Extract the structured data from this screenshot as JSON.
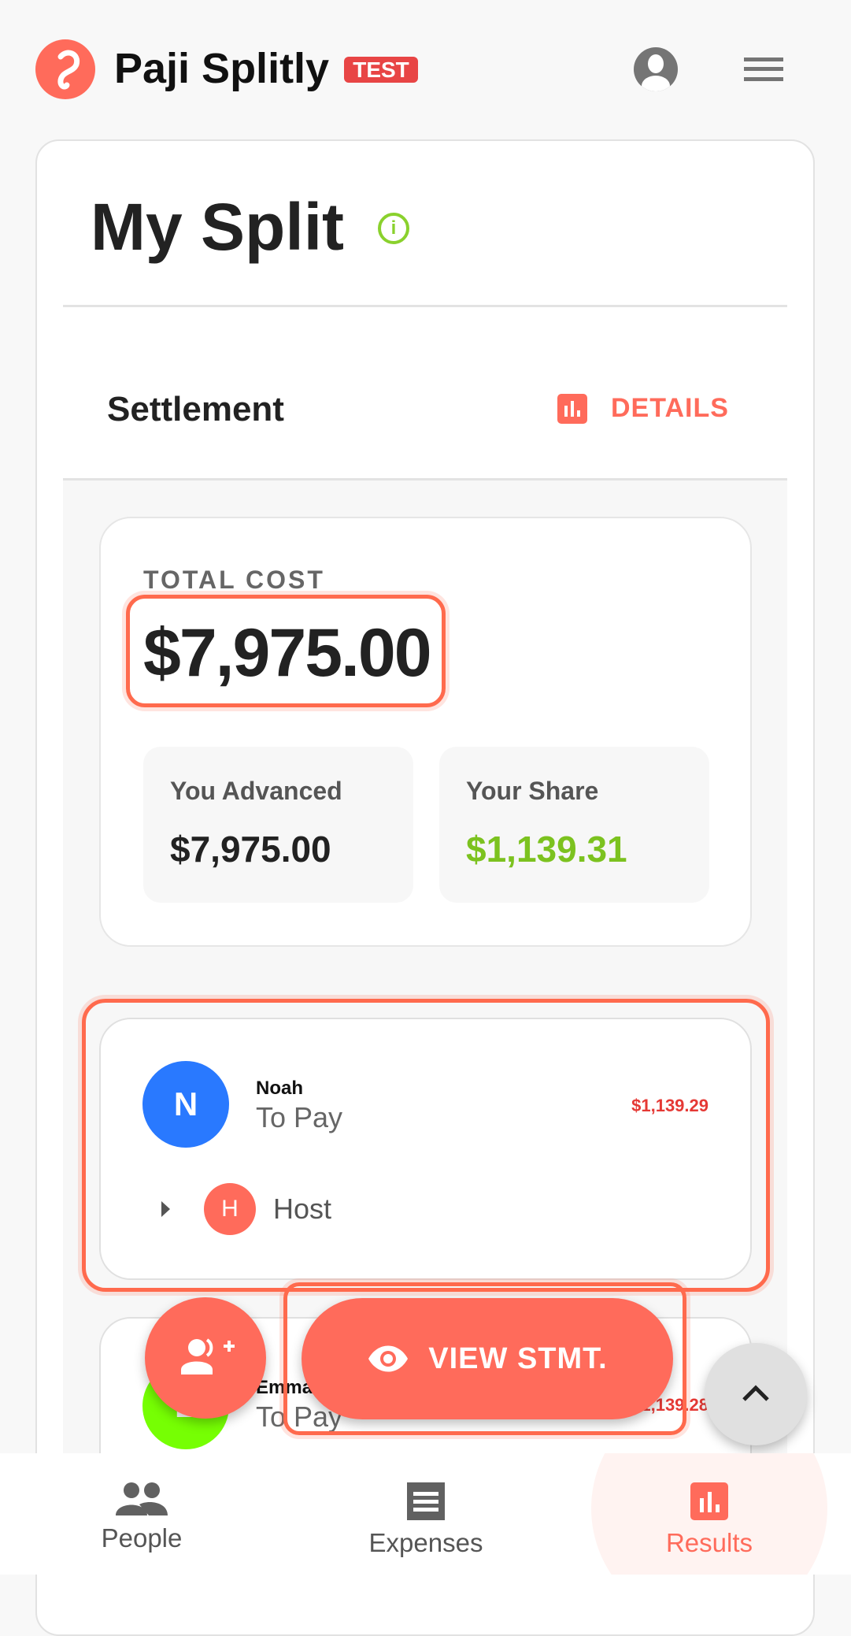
{
  "header": {
    "app_name": "Paji Splitly",
    "badge": "TEST",
    "icons": [
      "logo",
      "account-circle-icon",
      "menu-icon"
    ]
  },
  "page": {
    "title": "My Split",
    "info_icon": "info-icon"
  },
  "settlement": {
    "label": "Settlement",
    "details_label": "DETAILS"
  },
  "summary": {
    "total_label": "TOTAL COST",
    "total": "$7,975.00",
    "advanced_label": "You Advanced",
    "advanced": "$7,975.00",
    "share_label": "Your Share",
    "share": "$1,139.31"
  },
  "people": [
    {
      "initial": "N",
      "name": "Noah",
      "status": "To Pay",
      "amount": "$1,139.29",
      "color": "#2979ff",
      "to": {
        "initial": "H",
        "name": "Host"
      }
    },
    {
      "initial": "E",
      "name": "Emma",
      "status": "To Pay",
      "amount": "$1,139.28",
      "color": "#76ff03"
    }
  ],
  "actions": {
    "view_statement": "VIEW STMT."
  },
  "nav": [
    {
      "label": "People",
      "active": false
    },
    {
      "label": "Expenses",
      "active": false
    },
    {
      "label": "Results",
      "active": true
    }
  ],
  "colors": {
    "accent": "#ff6b5b",
    "positive": "#7cc21f",
    "negative": "#e53935"
  }
}
